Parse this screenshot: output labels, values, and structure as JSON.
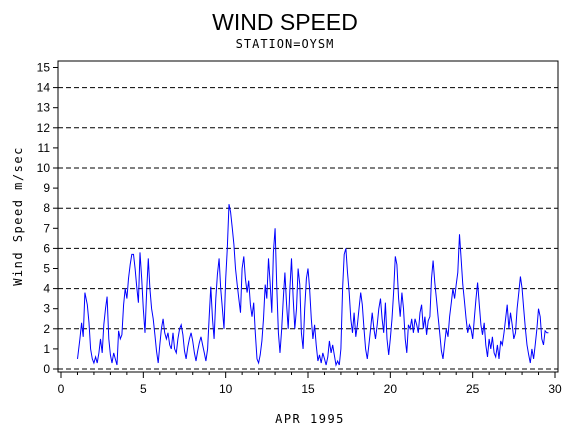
{
  "chart_data": {
    "type": "line",
    "title": "WIND SPEED",
    "subtitle": "STATION=OYSM",
    "xlabel": "APR 1995",
    "ylabel": "Wind Speed m/sec",
    "xlim": [
      0,
      30
    ],
    "ylim": [
      0,
      15.5
    ],
    "x_ticks": [
      0,
      5,
      10,
      15,
      20,
      25,
      30
    ],
    "y_ticks": [
      0,
      1,
      2,
      3,
      4,
      5,
      6,
      7,
      8,
      9,
      10,
      11,
      12,
      13,
      14,
      15
    ],
    "dashed_gridlines_y": [
      0,
      2,
      4,
      6,
      8,
      10,
      12,
      14
    ],
    "series": [
      {
        "color": "#0000ff",
        "points": [
          [
            1.0,
            0.5
          ],
          [
            1.15,
            1.5
          ],
          [
            1.25,
            2.3
          ],
          [
            1.35,
            1.6
          ],
          [
            1.45,
            3.8
          ],
          [
            1.6,
            3.2
          ],
          [
            1.7,
            2.3
          ],
          [
            1.8,
            1.0
          ],
          [
            1.9,
            0.5
          ],
          [
            2.0,
            0.3
          ],
          [
            2.1,
            0.6
          ],
          [
            2.2,
            0.3
          ],
          [
            2.3,
            0.8
          ],
          [
            2.4,
            1.5
          ],
          [
            2.5,
            0.8
          ],
          [
            2.6,
            2.2
          ],
          [
            2.7,
            3.0
          ],
          [
            2.8,
            3.6
          ],
          [
            2.9,
            1.5
          ],
          [
            3.0,
            0.7
          ],
          [
            3.1,
            0.3
          ],
          [
            3.2,
            0.8
          ],
          [
            3.3,
            0.5
          ],
          [
            3.4,
            0.2
          ],
          [
            3.5,
            1.9
          ],
          [
            3.6,
            1.5
          ],
          [
            3.7,
            1.7
          ],
          [
            3.8,
            3.2
          ],
          [
            3.9,
            4.0
          ],
          [
            4.0,
            3.5
          ],
          [
            4.1,
            4.5
          ],
          [
            4.2,
            5.2
          ],
          [
            4.3,
            5.7
          ],
          [
            4.4,
            5.7
          ],
          [
            4.5,
            5.0
          ],
          [
            4.6,
            4.1
          ],
          [
            4.7,
            3.3
          ],
          [
            4.8,
            5.8
          ],
          [
            4.9,
            4.5
          ],
          [
            5.0,
            3.0
          ],
          [
            5.1,
            1.8
          ],
          [
            5.2,
            3.8
          ],
          [
            5.3,
            5.5
          ],
          [
            5.4,
            4.0
          ],
          [
            5.5,
            3.0
          ],
          [
            5.6,
            2.5
          ],
          [
            5.7,
            1.7
          ],
          [
            5.8,
            0.9
          ],
          [
            5.9,
            0.3
          ],
          [
            6.0,
            1.2
          ],
          [
            6.1,
            2.0
          ],
          [
            6.2,
            2.5
          ],
          [
            6.3,
            1.8
          ],
          [
            6.4,
            1.5
          ],
          [
            6.5,
            1.8
          ],
          [
            6.6,
            1.2
          ],
          [
            6.7,
            1.0
          ],
          [
            6.8,
            1.8
          ],
          [
            6.9,
            1.0
          ],
          [
            7.0,
            0.8
          ],
          [
            7.1,
            1.5
          ],
          [
            7.2,
            2.0
          ],
          [
            7.3,
            2.2
          ],
          [
            7.4,
            1.7
          ],
          [
            7.5,
            0.9
          ],
          [
            7.6,
            0.5
          ],
          [
            7.7,
            1.1
          ],
          [
            7.8,
            1.5
          ],
          [
            7.9,
            1.8
          ],
          [
            8.0,
            1.4
          ],
          [
            8.1,
            0.8
          ],
          [
            8.2,
            0.4
          ],
          [
            8.3,
            0.9
          ],
          [
            8.4,
            1.3
          ],
          [
            8.5,
            1.6
          ],
          [
            8.6,
            1.2
          ],
          [
            8.7,
            0.8
          ],
          [
            8.8,
            0.4
          ],
          [
            8.9,
            1.0
          ],
          [
            9.0,
            2.6
          ],
          [
            9.1,
            4.1
          ],
          [
            9.2,
            2.5
          ],
          [
            9.3,
            1.5
          ],
          [
            9.4,
            3.5
          ],
          [
            9.5,
            4.7
          ],
          [
            9.6,
            5.5
          ],
          [
            9.7,
            4.0
          ],
          [
            9.8,
            3.0
          ],
          [
            9.9,
            2.0
          ],
          [
            10.0,
            4.5
          ],
          [
            10.1,
            6.0
          ],
          [
            10.2,
            8.2
          ],
          [
            10.3,
            7.8
          ],
          [
            10.4,
            7.0
          ],
          [
            10.5,
            6.2
          ],
          [
            10.6,
            5.0
          ],
          [
            10.7,
            4.2
          ],
          [
            10.8,
            3.5
          ],
          [
            10.9,
            2.8
          ],
          [
            11.0,
            5.0
          ],
          [
            11.1,
            5.6
          ],
          [
            11.2,
            4.5
          ],
          [
            11.3,
            3.8
          ],
          [
            11.4,
            4.4
          ],
          [
            11.5,
            3.2
          ],
          [
            11.6,
            2.6
          ],
          [
            11.7,
            3.3
          ],
          [
            11.8,
            1.8
          ],
          [
            11.9,
            0.5
          ],
          [
            12.0,
            0.3
          ],
          [
            12.1,
            0.7
          ],
          [
            12.2,
            1.4
          ],
          [
            12.3,
            2.5
          ],
          [
            12.4,
            4.2
          ],
          [
            12.5,
            3.5
          ],
          [
            12.6,
            5.5
          ],
          [
            12.7,
            4.3
          ],
          [
            12.8,
            2.8
          ],
          [
            12.9,
            5.8
          ],
          [
            13.0,
            7.0
          ],
          [
            13.1,
            4.2
          ],
          [
            13.2,
            1.8
          ],
          [
            13.3,
            0.8
          ],
          [
            13.4,
            2.0
          ],
          [
            13.5,
            3.5
          ],
          [
            13.6,
            4.8
          ],
          [
            13.7,
            3.2
          ],
          [
            13.8,
            2.0
          ],
          [
            13.9,
            4.0
          ],
          [
            14.0,
            5.5
          ],
          [
            14.1,
            3.5
          ],
          [
            14.2,
            2.0
          ],
          [
            14.3,
            3.0
          ],
          [
            14.4,
            5.0
          ],
          [
            14.5,
            4.2
          ],
          [
            14.6,
            1.8
          ],
          [
            14.7,
            1.0
          ],
          [
            14.8,
            3.0
          ],
          [
            14.9,
            4.5
          ],
          [
            15.0,
            5.0
          ],
          [
            15.1,
            4.0
          ],
          [
            15.2,
            2.5
          ],
          [
            15.3,
            1.5
          ],
          [
            15.4,
            2.2
          ],
          [
            15.5,
            1.2
          ],
          [
            15.6,
            0.4
          ],
          [
            15.7,
            0.7
          ],
          [
            15.8,
            0.3
          ],
          [
            15.9,
            0.8
          ],
          [
            16.0,
            0.5
          ],
          [
            16.1,
            0.2
          ],
          [
            16.2,
            0.6
          ],
          [
            16.3,
            1.4
          ],
          [
            16.4,
            0.8
          ],
          [
            16.5,
            1.2
          ],
          [
            16.6,
            0.7
          ],
          [
            16.7,
            0.2
          ],
          [
            16.8,
            0.4
          ],
          [
            16.9,
            0.2
          ],
          [
            17.0,
            1.0
          ],
          [
            17.1,
            4.0
          ],
          [
            17.2,
            5.7
          ],
          [
            17.3,
            6.0
          ],
          [
            17.4,
            4.8
          ],
          [
            17.5,
            3.8
          ],
          [
            17.6,
            2.5
          ],
          [
            17.7,
            1.8
          ],
          [
            17.8,
            2.8
          ],
          [
            17.9,
            1.6
          ],
          [
            18.0,
            2.2
          ],
          [
            18.1,
            3.0
          ],
          [
            18.2,
            3.8
          ],
          [
            18.3,
            3.2
          ],
          [
            18.4,
            2.0
          ],
          [
            18.5,
            1.0
          ],
          [
            18.6,
            0.5
          ],
          [
            18.7,
            1.2
          ],
          [
            18.8,
            2.0
          ],
          [
            18.9,
            2.8
          ],
          [
            19.0,
            2.0
          ],
          [
            19.1,
            1.5
          ],
          [
            19.2,
            2.2
          ],
          [
            19.3,
            3.0
          ],
          [
            19.4,
            3.5
          ],
          [
            19.5,
            2.5
          ],
          [
            19.6,
            1.8
          ],
          [
            19.7,
            3.3
          ],
          [
            19.8,
            1.5
          ],
          [
            19.9,
            0.7
          ],
          [
            20.0,
            1.5
          ],
          [
            20.1,
            2.5
          ],
          [
            20.2,
            3.8
          ],
          [
            20.3,
            5.6
          ],
          [
            20.4,
            5.2
          ],
          [
            20.5,
            3.5
          ],
          [
            20.6,
            2.6
          ],
          [
            20.7,
            3.8
          ],
          [
            20.8,
            3.0
          ],
          [
            20.9,
            1.5
          ],
          [
            21.0,
            0.8
          ],
          [
            21.1,
            2.2
          ],
          [
            21.2,
            2.0
          ],
          [
            21.3,
            2.5
          ],
          [
            21.4,
            1.8
          ],
          [
            21.5,
            2.5
          ],
          [
            21.6,
            2.2
          ],
          [
            21.7,
            1.8
          ],
          [
            21.8,
            2.8
          ],
          [
            21.9,
            3.2
          ],
          [
            22.0,
            2.0
          ],
          [
            22.1,
            2.6
          ],
          [
            22.2,
            1.7
          ],
          [
            22.3,
            2.4
          ],
          [
            22.4,
            2.6
          ],
          [
            22.5,
            4.5
          ],
          [
            22.6,
            5.4
          ],
          [
            22.7,
            4.3
          ],
          [
            22.8,
            3.5
          ],
          [
            22.9,
            2.6
          ],
          [
            23.0,
            1.8
          ],
          [
            23.1,
            0.9
          ],
          [
            23.2,
            0.5
          ],
          [
            23.3,
            1.3
          ],
          [
            23.4,
            2.0
          ],
          [
            23.5,
            1.6
          ],
          [
            23.6,
            2.6
          ],
          [
            23.7,
            3.3
          ],
          [
            23.8,
            4.0
          ],
          [
            23.9,
            3.5
          ],
          [
            24.0,
            4.2
          ],
          [
            24.1,
            4.8
          ],
          [
            24.2,
            6.7
          ],
          [
            24.3,
            5.5
          ],
          [
            24.4,
            4.2
          ],
          [
            24.5,
            3.4
          ],
          [
            24.6,
            2.5
          ],
          [
            24.7,
            1.8
          ],
          [
            24.8,
            2.2
          ],
          [
            24.9,
            2.0
          ],
          [
            25.0,
            1.5
          ],
          [
            25.1,
            2.5
          ],
          [
            25.2,
            3.5
          ],
          [
            25.3,
            4.3
          ],
          [
            25.4,
            3.2
          ],
          [
            25.5,
            2.2
          ],
          [
            25.6,
            1.7
          ],
          [
            25.7,
            2.3
          ],
          [
            25.8,
            1.2
          ],
          [
            25.9,
            0.6
          ],
          [
            26.0,
            1.5
          ],
          [
            26.1,
            1.0
          ],
          [
            26.2,
            1.6
          ],
          [
            26.3,
            0.8
          ],
          [
            26.4,
            0.6
          ],
          [
            26.5,
            1.2
          ],
          [
            26.6,
            0.5
          ],
          [
            26.7,
            1.4
          ],
          [
            26.8,
            1.2
          ],
          [
            26.9,
            1.8
          ],
          [
            27.0,
            2.5
          ],
          [
            27.1,
            3.2
          ],
          [
            27.2,
            2.0
          ],
          [
            27.3,
            2.8
          ],
          [
            27.4,
            2.2
          ],
          [
            27.5,
            1.5
          ],
          [
            27.6,
            1.8
          ],
          [
            27.7,
            3.0
          ],
          [
            27.8,
            3.8
          ],
          [
            27.9,
            4.6
          ],
          [
            28.0,
            4.0
          ],
          [
            28.1,
            3.0
          ],
          [
            28.2,
            2.0
          ],
          [
            28.3,
            1.2
          ],
          [
            28.4,
            0.7
          ],
          [
            28.5,
            0.3
          ],
          [
            28.6,
            1.0
          ],
          [
            28.7,
            0.5
          ],
          [
            28.8,
            1.2
          ],
          [
            28.9,
            2.0
          ],
          [
            29.0,
            3.0
          ],
          [
            29.1,
            2.6
          ],
          [
            29.2,
            1.5
          ],
          [
            29.3,
            1.2
          ],
          [
            29.4,
            1.9
          ],
          [
            29.5,
            1.8
          ],
          [
            29.6,
            1.8
          ]
        ]
      }
    ]
  }
}
